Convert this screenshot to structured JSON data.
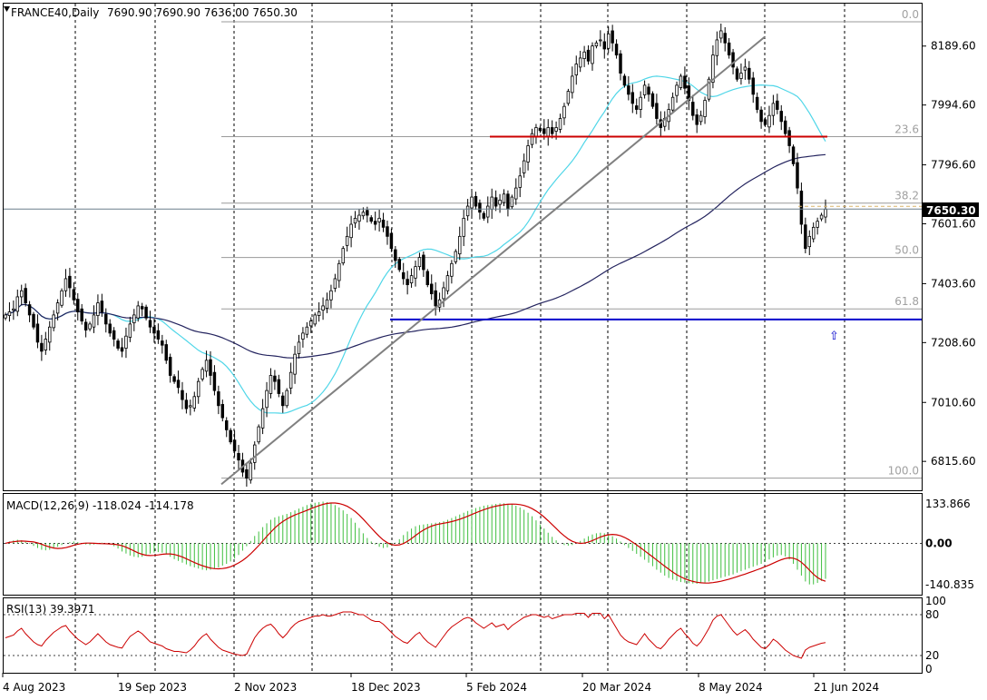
{
  "chart_data": {
    "type": "candlestick",
    "symbol_label": "FRANCE40,Daily",
    "ohlc_label": "7690.90 7690.90 7636.00 7650.30",
    "last_price_label": "7650.30",
    "price_ylim": [
      6720,
      8330
    ],
    "price_ticks": [
      "8189.60",
      "7994.60",
      "7796.60",
      "7601.60",
      "7403.60",
      "7208.60",
      "7010.60",
      "6815.60"
    ],
    "last_price": 7650.3,
    "x_date_labels": [
      "4 Aug 2023",
      "19 Sep 2023",
      "2 Nov 2023",
      "18 Dec 2023",
      "5 Feb 2024",
      "20 Mar 2024",
      "8 May 2024",
      "21 Jun 2024"
    ],
    "fibonacci": {
      "labels": [
        "0.0",
        "23.6",
        "38.2",
        "50.0",
        "61.8",
        "100.0"
      ],
      "levels": [
        8270,
        7890,
        7670,
        7490,
        7320,
        6760
      ]
    },
    "horizontal_lines": [
      {
        "value": 7285,
        "color": "#0000cc"
      },
      {
        "value": 7890,
        "color": "#cc0000"
      }
    ],
    "trendline": {
      "from": [
        0,
        6740
      ],
      "to": [
        0,
        8220
      ],
      "color": "#808080"
    },
    "ma_fast_color": "#4fd6e8",
    "ma_slow_color": "#23235e",
    "bull_color": "#2b2b2b",
    "candle_series_close": [
      7300,
      7310,
      7320,
      7360,
      7380,
      7340,
      7300,
      7260,
      7210,
      7180,
      7220,
      7260,
      7300,
      7340,
      7380,
      7420,
      7390,
      7350,
      7310,
      7280,
      7250,
      7270,
      7300,
      7340,
      7310,
      7270,
      7240,
      7220,
      7190,
      7180,
      7230,
      7270,
      7300,
      7330,
      7320,
      7290,
      7260,
      7240,
      7220,
      7200,
      7150,
      7100,
      7080,
      7060,
      7020,
      6990,
      7000,
      7030,
      7080,
      7120,
      7150,
      7100,
      7050,
      7000,
      6960,
      6920,
      6880,
      6850,
      6820,
      6780,
      6760,
      6810,
      6870,
      6930,
      6990,
      7050,
      7100,
      7080,
      7040,
      7000,
      7050,
      7110,
      7170,
      7210,
      7240,
      7260,
      7280,
      7300,
      7310,
      7330,
      7350,
      7380,
      7420,
      7470,
      7520,
      7560,
      7600,
      7620,
      7630,
      7640,
      7630,
      7610,
      7600,
      7620,
      7590,
      7560,
      7520,
      7480,
      7450,
      7420,
      7400,
      7430,
      7460,
      7490,
      7450,
      7400,
      7370,
      7330,
      7350,
      7390,
      7430,
      7470,
      7510,
      7560,
      7620,
      7660,
      7690,
      7660,
      7640,
      7620,
      7660,
      7690,
      7660,
      7680,
      7700,
      7650,
      7690,
      7720,
      7760,
      7810,
      7860,
      7900,
      7920,
      7910,
      7900,
      7920,
      7900,
      7920,
      7950,
      7990,
      8040,
      8090,
      8130,
      8150,
      8170,
      8140,
      8190,
      8200,
      8210,
      8180,
      8230,
      8200,
      8160,
      8100,
      8060,
      8030,
      8000,
      7980,
      8020,
      8060,
      8030,
      7990,
      7950,
      7920,
      7950,
      7980,
      8020,
      8060,
      8090,
      8050,
      8010,
      7960,
      7930,
      7960,
      8010,
      8080,
      8160,
      8210,
      8240,
      8200,
      8160,
      8120,
      8080,
      8100,
      8120,
      8080,
      8030,
      7980,
      7940,
      7930,
      7960,
      8000,
      7980,
      7940,
      7900,
      7860,
      7800,
      7720,
      7600,
      7520,
      7560,
      7590,
      7610,
      7630,
      7650
    ],
    "macd": {
      "label": "MACD(12,26,9) -118.024 -114.178",
      "ticks": [
        "133.866",
        "0.00",
        "-140.835"
      ],
      "ylim": [
        -175,
        165
      ],
      "histogram": [
        0,
        6,
        10,
        12,
        10,
        5,
        -2,
        -9,
        -16,
        -22,
        -24,
        -22,
        -18,
        -12,
        -6,
        0,
        4,
        6,
        4,
        0,
        -4,
        -6,
        -4,
        0,
        2,
        0,
        -4,
        -10,
        -18,
        -28,
        -35,
        -42,
        -46,
        -48,
        -46,
        -40,
        -35,
        -32,
        -30,
        -32,
        -38,
        -46,
        -54,
        -60,
        -66,
        -72,
        -78,
        -82,
        -86,
        -90,
        -92,
        -90,
        -86,
        -82,
        -76,
        -70,
        -62,
        -52,
        -40,
        -25,
        -10,
        8,
        25,
        40,
        55,
        68,
        80,
        88,
        92,
        96,
        100,
        106,
        112,
        118,
        124,
        130,
        135,
        138,
        140,
        142,
        140,
        136,
        130,
        122,
        112,
        100,
        86,
        70,
        52,
        34,
        18,
        6,
        -4,
        -12,
        -16,
        -14,
        -8,
        2,
        14,
        28,
        40,
        50,
        58,
        62,
        64,
        66,
        68,
        70,
        72,
        75,
        80,
        86,
        92,
        98,
        104,
        110,
        116,
        120,
        124,
        128,
        130,
        132,
        134,
        136,
        136,
        134,
        132,
        128,
        122,
        114,
        104,
        92,
        78,
        64,
        50,
        36,
        22,
        10,
        0,
        -6,
        -8,
        -6,
        0,
        8,
        16,
        24,
        30,
        34,
        36,
        34,
        30,
        24,
        16,
        6,
        -6,
        -16,
        -26,
        -36,
        -46,
        -56,
        -66,
        -78,
        -90,
        -100,
        -110,
        -118,
        -124,
        -128,
        -132,
        -134,
        -136,
        -137,
        -138,
        -136,
        -134,
        -130,
        -126,
        -122,
        -118,
        -114,
        -110,
        -106,
        -100,
        -95,
        -90,
        -85,
        -80,
        -75,
        -70,
        -62,
        -55,
        -48,
        -42,
        -40,
        -45,
        -55,
        -70,
        -90,
        -110,
        -130,
        -140,
        -140,
        -135,
        -128,
        -121
      ]
    },
    "rsi": {
      "label": "RSI(13) 39.3971",
      "ticks": [
        "100",
        "80",
        "20",
        "0"
      ],
      "levels": [
        80,
        20
      ],
      "ylim": [
        0,
        100
      ],
      "values": [
        46,
        48,
        50,
        56,
        60,
        52,
        46,
        40,
        36,
        34,
        42,
        48,
        54,
        58,
        62,
        64,
        56,
        50,
        44,
        40,
        36,
        40,
        46,
        52,
        46,
        40,
        36,
        34,
        32,
        31,
        40,
        48,
        52,
        56,
        52,
        46,
        40,
        38,
        36,
        34,
        30,
        28,
        26,
        26,
        25,
        24,
        28,
        34,
        42,
        48,
        52,
        44,
        38,
        32,
        28,
        26,
        24,
        22,
        21,
        20,
        22,
        34,
        46,
        54,
        60,
        64,
        66,
        60,
        52,
        46,
        52,
        60,
        66,
        70,
        72,
        74,
        76,
        78,
        78,
        80,
        78,
        78,
        80,
        82,
        84,
        84,
        84,
        82,
        80,
        80,
        76,
        72,
        70,
        70,
        66,
        60,
        54,
        48,
        44,
        40,
        38,
        44,
        50,
        54,
        46,
        40,
        36,
        32,
        40,
        48,
        56,
        62,
        66,
        70,
        74,
        76,
        74,
        68,
        64,
        60,
        64,
        68,
        62,
        64,
        66,
        58,
        64,
        68,
        72,
        76,
        78,
        80,
        80,
        78,
        76,
        78,
        74,
        76,
        78,
        80,
        80,
        80,
        82,
        82,
        82,
        76,
        82,
        82,
        82,
        74,
        80,
        70,
        60,
        50,
        44,
        40,
        38,
        36,
        44,
        52,
        44,
        38,
        32,
        30,
        36,
        44,
        50,
        56,
        60,
        52,
        46,
        38,
        34,
        40,
        50,
        60,
        72,
        78,
        80,
        72,
        64,
        56,
        50,
        54,
        58,
        52,
        44,
        38,
        32,
        30,
        36,
        44,
        40,
        34,
        28,
        24,
        20,
        18,
        16,
        28,
        32,
        34,
        36,
        38,
        39
      ]
    }
  }
}
